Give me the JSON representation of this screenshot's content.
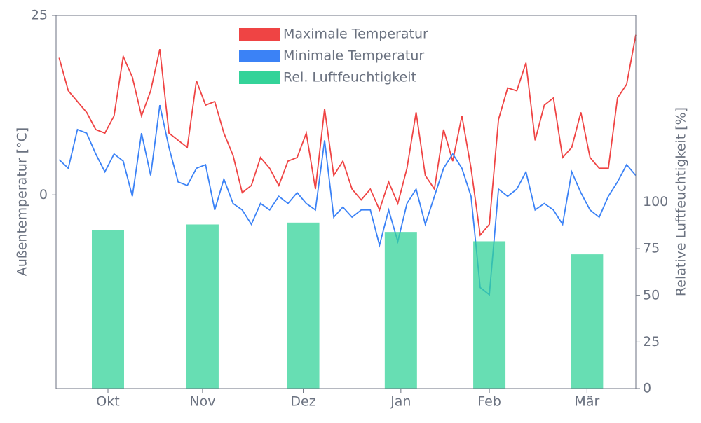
{
  "chart_data": {
    "type": "line",
    "ylabel": "Außentemperatur [°C]",
    "y2label": "Relative Luftfeuchtigkeit [%]",
    "xlim": [
      0,
      190
    ],
    "xticks": [
      {
        "value": 17,
        "label": "Okt"
      },
      {
        "value": 48,
        "label": "Nov"
      },
      {
        "value": 81,
        "label": "Dez"
      },
      {
        "value": 113,
        "label": "Jan"
      },
      {
        "value": 142,
        "label": "Feb"
      },
      {
        "value": 174,
        "label": "Mär"
      }
    ],
    "ylim": [
      -27,
      25
    ],
    "yticks": [
      0,
      25
    ],
    "y2lim": [
      0,
      200
    ],
    "y2ticks": [
      0,
      25,
      50,
      75,
      100
    ],
    "legend": "upper center",
    "x": [
      1,
      4,
      7,
      10,
      13,
      16,
      19,
      22,
      25,
      28,
      31,
      34,
      37,
      40,
      43,
      46,
      49,
      52,
      55,
      58,
      61,
      64,
      67,
      70,
      73,
      76,
      79,
      82,
      85,
      88,
      91,
      94,
      97,
      100,
      103,
      106,
      109,
      112,
      115,
      118,
      121,
      124,
      127,
      130,
      133,
      136,
      139,
      142,
      145,
      148,
      151,
      154,
      157,
      160,
      163,
      166,
      169,
      172,
      175,
      178,
      181,
      184,
      187,
      190
    ],
    "series": [
      {
        "name": "Maximale Temperatur",
        "color": "#ef4444",
        "values": [
          19.1,
          14.5,
          13,
          11.5,
          9.1,
          8.6,
          11,
          19.3,
          16.4,
          11,
          14.5,
          20.3,
          8.6,
          7.6,
          6.6,
          15.9,
          12.5,
          13,
          8.6,
          5.5,
          0.3,
          1.3,
          5.2,
          3.7,
          1.3,
          4.7,
          5.2,
          8.6,
          0.8,
          12,
          2.7,
          4.7,
          0.8,
          -0.7,
          0.8,
          -2.1,
          1.8,
          -1.2,
          3.7,
          11.5,
          2.7,
          0.8,
          9.1,
          4.7,
          11,
          3.7,
          -5.6,
          -4.1,
          10.5,
          14.9,
          14.5,
          18.4,
          7.6,
          12.5,
          13.5,
          5.2,
          6.6,
          11.5,
          5.2,
          3.7,
          3.7,
          13.5,
          15.4,
          22.3
        ]
      },
      {
        "name": "Minimale Temperatur",
        "color": "#3b82f6",
        "values": [
          4.9,
          3.7,
          9.1,
          8.6,
          5.7,
          3.2,
          5.7,
          4.7,
          -0.2,
          8.6,
          2.7,
          12.5,
          6.6,
          1.8,
          1.3,
          3.7,
          4.2,
          -2.1,
          2.2,
          -1.2,
          -2.1,
          -4.1,
          -1.2,
          -2.1,
          -0.2,
          -1.2,
          0.3,
          -1.2,
          -2.1,
          7.6,
          -3.1,
          -1.7,
          -3.1,
          -2.1,
          -2.1,
          -7,
          -2.1,
          -6.5,
          -1.2,
          0.8,
          -4.1,
          -0.2,
          3.7,
          5.7,
          3.7,
          -0.2,
          -12.9,
          -13.9,
          0.8,
          -0.2,
          0.8,
          3.2,
          -2.1,
          -1.2,
          -2.1,
          -4.1,
          3.2,
          0.3,
          -2.1,
          -3.1,
          -0.2,
          1.8,
          4.2,
          2.7
        ]
      },
      {
        "name": "Rel. Luftfeuchtigkeit",
        "color": "#34d399",
        "type": "bar",
        "axis": "y2",
        "x": [
          17,
          48,
          81,
          113,
          142,
          174
        ],
        "values": [
          85,
          88,
          89,
          84,
          79,
          72
        ]
      }
    ]
  }
}
